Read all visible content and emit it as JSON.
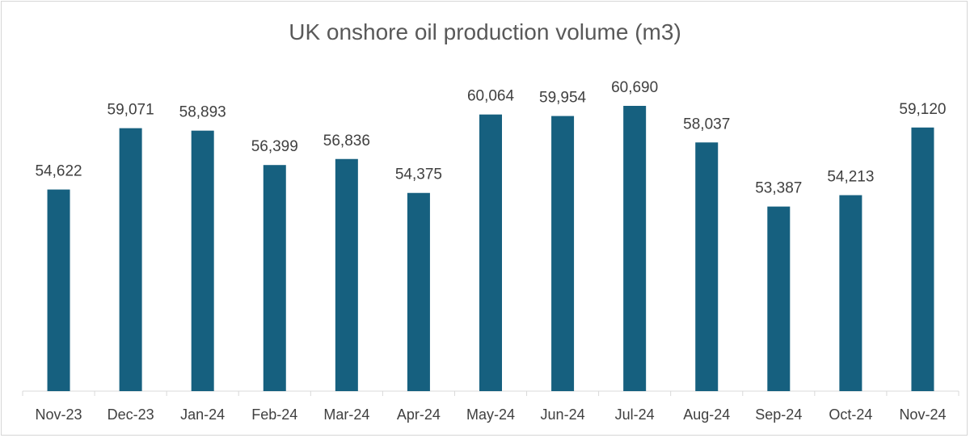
{
  "chart_data": {
    "type": "bar",
    "title": "UK onshore oil production volume (m3)",
    "categories": [
      "Nov-23",
      "Dec-23",
      "Jan-24",
      "Feb-24",
      "Mar-24",
      "Apr-24",
      "May-24",
      "Jun-24",
      "Jul-24",
      "Aug-24",
      "Sep-24",
      "Oct-24",
      "Nov-24"
    ],
    "values": [
      54622,
      59071,
      58893,
      56399,
      56836,
      54375,
      60064,
      59954,
      60690,
      58037,
      53387,
      54213,
      59120
    ],
    "value_labels": [
      "54,622",
      "59,071",
      "58,893",
      "56,399",
      "56,836",
      "54,375",
      "60,064",
      "59,954",
      "60,690",
      "58,037",
      "53,387",
      "54,213",
      "59,120"
    ],
    "xlabel": "",
    "ylabel": "",
    "ylim": [
      40000,
      62000
    ],
    "bar_color": "#16607f",
    "grid": false,
    "legend": "none"
  }
}
